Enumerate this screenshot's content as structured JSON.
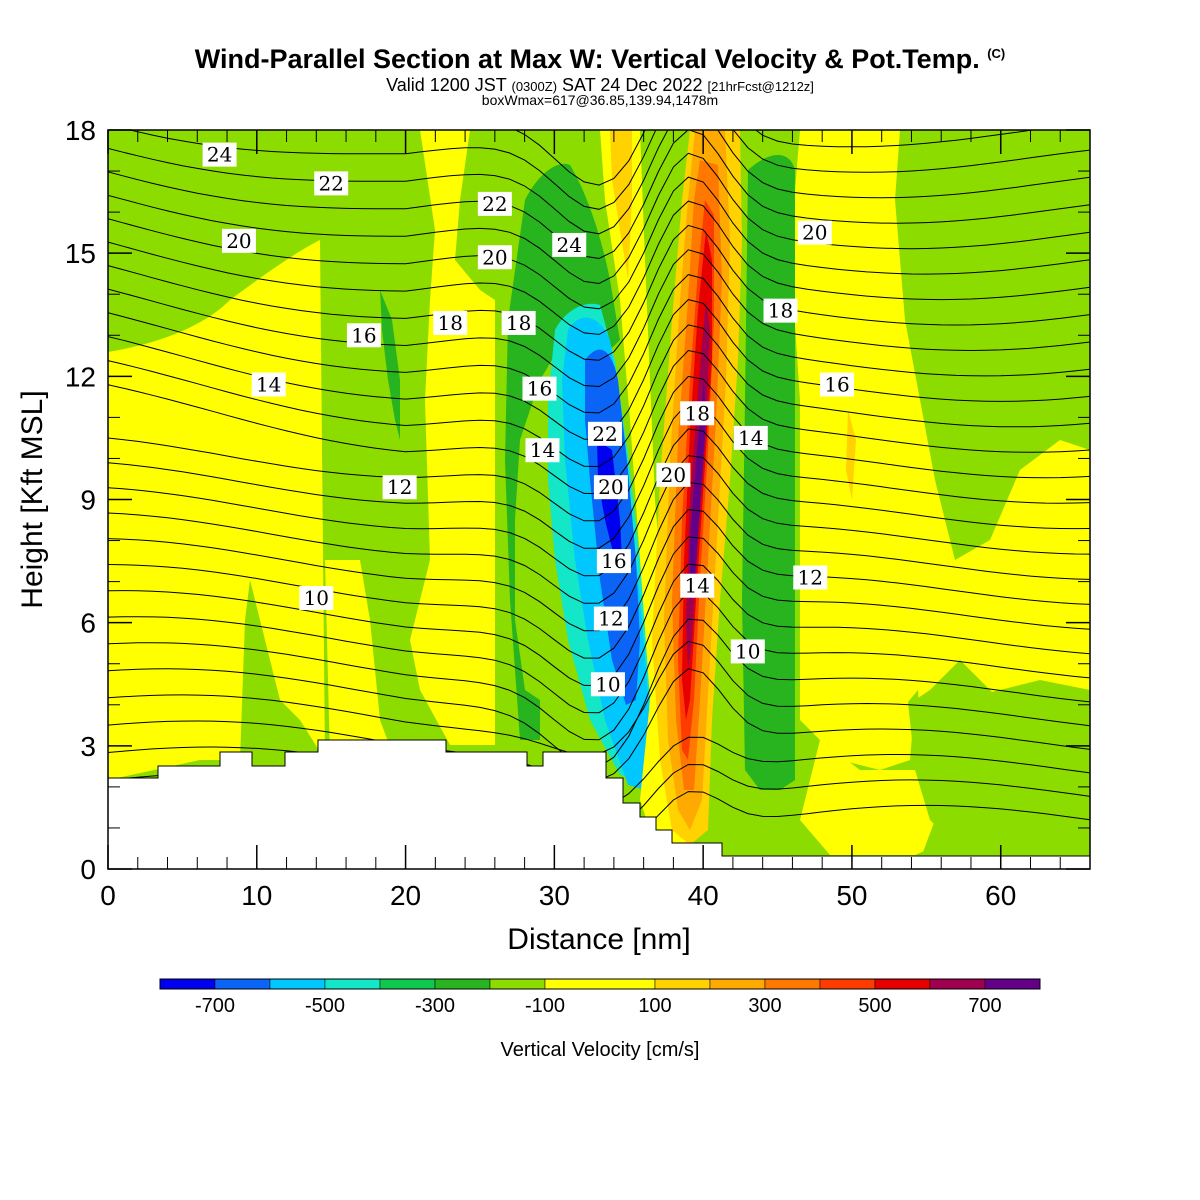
{
  "header": {
    "title": "Wind-Parallel Section at Max W: Vertical Velocity & Pot.Temp.",
    "title_mark": "(C)",
    "valid_prefix": "Valid 1200 JST",
    "valid_zulu": "(0300Z)",
    "valid_date": "SAT 24 Dec 2022",
    "valid_fcst": "[21hrFcst@1212z]",
    "box_info": "boxWmax=617@36.85,139.94,1478m"
  },
  "chart_data": {
    "type": "heatmap",
    "title": "Wind-Parallel Section at Max W: Vertical Velocity & Pot.Temp.",
    "xlabel": "Distance [nm]",
    "ylabel": "Height [Kft MSL]",
    "xlim": [
      0,
      66
    ],
    "ylim": [
      0,
      18
    ],
    "x_ticks": [
      0,
      10,
      20,
      30,
      40,
      50,
      60
    ],
    "y_ticks": [
      0,
      3,
      6,
      9,
      12,
      15,
      18
    ],
    "fill_variable": "Vertical Velocity [cm/s]",
    "contour_variable": "Pot.Temp.",
    "colorbar": {
      "label": "Vertical Velocity [cm/s]",
      "tick_labels": [
        "-700",
        "-500",
        "-300",
        "-100",
        "100",
        "300",
        "500",
        "700"
      ],
      "tick_values": [
        -700,
        -500,
        -300,
        -100,
        100,
        300,
        500,
        700
      ],
      "bins": [
        -800,
        -700,
        -600,
        -500,
        -400,
        -300,
        -200,
        -100,
        100,
        200,
        300,
        400,
        500,
        600,
        700,
        800
      ],
      "colors": [
        "#0000f0",
        "#0a64f5",
        "#00c8ff",
        "#14e6c8",
        "#0fc850",
        "#28b41e",
        "#8cdc00",
        "#ffff00",
        "#ffd200",
        "#ffaa00",
        "#ff7800",
        "#ff3c00",
        "#e60000",
        "#a00050",
        "#640087"
      ]
    },
    "fill_regions": [
      {
        "bin_color": "#8cdc00",
        "description": "background weak descent"
      },
      {
        "bin_color": "#ffff00",
        "x_range": [
          0,
          15
        ],
        "y_range": [
          2.2,
          12.5
        ]
      },
      {
        "bin_color": "#ffff00",
        "x_range": [
          20,
          26
        ],
        "y_range": [
          3,
          18
        ]
      },
      {
        "bin_color": "#ffff00",
        "x_range": [
          47,
          66
        ],
        "y_range": [
          2,
          18
        ]
      },
      {
        "bin_color": "#28b41e",
        "x_range": [
          26,
          33
        ],
        "y_range": [
          3,
          17
        ]
      },
      {
        "bin_color": "#28b41e",
        "x_range": [
          43,
          46.5
        ],
        "y_range": [
          2,
          17.5
        ]
      },
      {
        "bin_color": "#00c8ff",
        "x_range": [
          29,
          36
        ],
        "y_range": [
          2,
          13.5
        ]
      },
      {
        "bin_color": "#0a64f5",
        "x_range": [
          30,
          35
        ],
        "y_range": [
          4,
          12
        ]
      },
      {
        "bin_color": "#e60000",
        "x_range": [
          38,
          42
        ],
        "y_range": [
          1.5,
          17
        ]
      },
      {
        "bin_color": "#640087",
        "x_range": [
          38.5,
          41
        ],
        "y_range": [
          5,
          13
        ]
      }
    ],
    "contour_labels": [
      {
        "text": "24",
        "x": 7.5,
        "y": 17.4
      },
      {
        "text": "22",
        "x": 15,
        "y": 16.7
      },
      {
        "text": "20",
        "x": 8.8,
        "y": 15.3
      },
      {
        "text": "22",
        "x": 26,
        "y": 16.2
      },
      {
        "text": "20",
        "x": 26,
        "y": 14.9
      },
      {
        "text": "24",
        "x": 31,
        "y": 15.2
      },
      {
        "text": "16",
        "x": 17.2,
        "y": 13
      },
      {
        "text": "18",
        "x": 23,
        "y": 13.3
      },
      {
        "text": "18",
        "x": 27.6,
        "y": 13.3
      },
      {
        "text": "14",
        "x": 10.8,
        "y": 11.8
      },
      {
        "text": "16",
        "x": 29,
        "y": 11.7
      },
      {
        "text": "22",
        "x": 33.4,
        "y": 10.6
      },
      {
        "text": "18",
        "x": 39.6,
        "y": 11.1
      },
      {
        "text": "14",
        "x": 29.2,
        "y": 10.2
      },
      {
        "text": "20",
        "x": 38,
        "y": 9.6
      },
      {
        "text": "12",
        "x": 19.6,
        "y": 9.3
      },
      {
        "text": "20",
        "x": 33.8,
        "y": 9.3
      },
      {
        "text": "16",
        "x": 34,
        "y": 7.5
      },
      {
        "text": "14",
        "x": 39.6,
        "y": 6.9
      },
      {
        "text": "12",
        "x": 47.2,
        "y": 7.1
      },
      {
        "text": "10",
        "x": 14,
        "y": 6.6
      },
      {
        "text": "12",
        "x": 33.8,
        "y": 6.1
      },
      {
        "text": "10",
        "x": 33.6,
        "y": 4.5
      },
      {
        "text": "20",
        "x": 47.5,
        "y": 15.5
      },
      {
        "text": "18",
        "x": 45.2,
        "y": 13.6
      },
      {
        "text": "16",
        "x": 49,
        "y": 11.8
      },
      {
        "text": "14",
        "x": 43.2,
        "y": 10.5
      },
      {
        "text": "10",
        "x": 43,
        "y": 5.3
      }
    ]
  }
}
